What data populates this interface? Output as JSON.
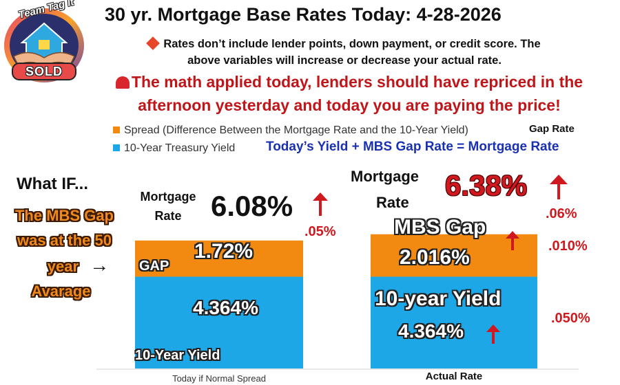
{
  "header": {
    "title": "30 yr. Mortgage Base Rates Today: 4-28-2026",
    "note_line1": "Rates don’t include lender points, down payment, or credit score. The",
    "note_line2": "above variables will increase or decrease your actual rate.",
    "alert_line1": "The math applied today, lenders should have repriced in the",
    "alert_line2": "afternoon yesterday and today you are paying the price!"
  },
  "logo": {
    "top_text": "Team Tag It",
    "bottom_text": "SOLD",
    "icon": "house-handshake-icon"
  },
  "legend": {
    "spread_label": "Spread (Difference Between the Mortgage Rate and the 10-Year Yield)",
    "gap_rate_label": "Gap Rate",
    "yield_label": "10-Year Treasury Yield",
    "formula": "Today’s  Yield +  MBS Gap Rate = Mortgage Rate"
  },
  "left_panel": {
    "what_if": "What IF...",
    "line1": "The MBS Gap",
    "line2": "was at the 50",
    "line3": "year",
    "line4": "Avarage",
    "arrow_glyph": "→"
  },
  "chart_data": {
    "type": "bar",
    "stacked": true,
    "categories": [
      "Today if Normal Spread",
      "Actual Rate"
    ],
    "series": [
      {
        "name": "10-Year Treasury Yield",
        "values": [
          4.364,
          4.364
        ],
        "color": "#1ea7e6"
      },
      {
        "name": "Spread (Difference Between the Mortgage Rate and the 10-Year Yield)",
        "values": [
          1.72,
          2.016
        ],
        "color": "#f28a12"
      }
    ],
    "totals": [
      6.08,
      6.38
    ],
    "mortgage_label_line1": "Mortgage",
    "mortgage_label_line2": "Rate",
    "bar1": {
      "total_label": "6.08%",
      "total_change": ".05%",
      "gap_value_label": "1.72%",
      "gap_side_label": "GAP",
      "yield_value_label": "4.364%",
      "yield_bottom_label": "10-Year Yield"
    },
    "bar2": {
      "total_label": "6.38%",
      "total_change": ".06%",
      "gap_title": "MBS Gap",
      "gap_value_label": "2.016%",
      "gap_change": ".010%",
      "yield_title": "10-year Yield",
      "yield_value_label": "4.364%",
      "yield_change": ".050%"
    }
  },
  "colors": {
    "orange": "#f28a12",
    "blue": "#1ea7e6",
    "red": "#d0191e",
    "navy": "#1a32b0"
  }
}
